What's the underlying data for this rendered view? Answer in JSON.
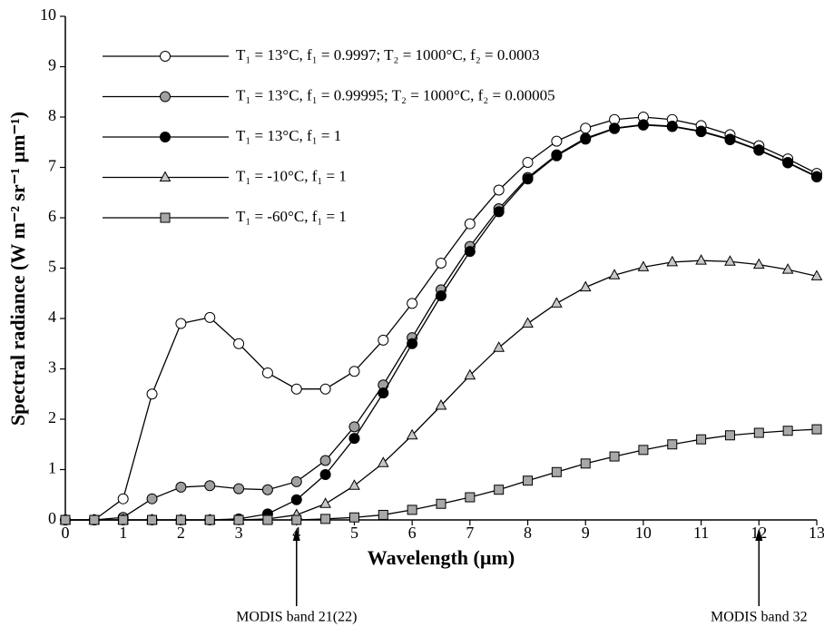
{
  "chart_data": {
    "type": "line",
    "x_label": "Wavelength (µm)",
    "y_label": "Spectral radiance (W m⁻² sr⁻¹ µm⁻¹)",
    "x": [
      0,
      0.5,
      1,
      1.5,
      2,
      2.5,
      3,
      3.5,
      4,
      4.5,
      5,
      5.5,
      6,
      6.5,
      7,
      7.5,
      8,
      8.5,
      9,
      9.5,
      10,
      10.5,
      11,
      11.5,
      12,
      12.5,
      13
    ],
    "series": [
      {
        "name": "T₁ =  13°C, f₁ = 0.9997; T₂ = 1000°C, f₂ = 0.0003",
        "color": "#ffffff",
        "marker": "circle",
        "values": [
          0,
          0,
          0.42,
          2.5,
          3.9,
          4.02,
          3.5,
          2.92,
          2.6,
          2.6,
          2.95,
          3.57,
          4.3,
          5.1,
          5.88,
          6.55,
          7.1,
          7.52,
          7.78,
          7.95,
          8.0,
          7.95,
          7.83,
          7.65,
          7.43,
          7.17,
          6.88
        ]
      },
      {
        "name": "T₁ =  13°C, f₁ = 0.99995; T₂ = 1000°C, f₂ = 0.00005",
        "color": "#a0a0a0",
        "marker": "circle",
        "values": [
          0,
          0,
          0.05,
          0.42,
          0.65,
          0.68,
          0.62,
          0.6,
          0.76,
          1.18,
          1.85,
          2.68,
          3.62,
          4.57,
          5.43,
          6.18,
          6.8,
          7.25,
          7.58,
          7.78,
          7.85,
          7.82,
          7.72,
          7.56,
          7.35,
          7.1,
          6.82
        ]
      },
      {
        "name": "T₁ =  13°C, f₁ = 1",
        "color": "#000000",
        "marker": "circle",
        "values": [
          0,
          0,
          0,
          0,
          0,
          0,
          0.02,
          0.12,
          0.4,
          0.9,
          1.62,
          2.52,
          3.5,
          4.45,
          5.33,
          6.12,
          6.77,
          7.23,
          7.56,
          7.77,
          7.84,
          7.81,
          7.71,
          7.55,
          7.34,
          7.09,
          6.81
        ]
      },
      {
        "name": "T₁ = -10°C, f₁ = 1",
        "color": "#c8c8c8",
        "marker": "triangle",
        "values": [
          0,
          0,
          0,
          0,
          0,
          0,
          0,
          0.02,
          0.1,
          0.32,
          0.68,
          1.13,
          1.68,
          2.27,
          2.87,
          3.42,
          3.9,
          4.3,
          4.62,
          4.86,
          5.02,
          5.12,
          5.15,
          5.13,
          5.07,
          4.97,
          4.84
        ]
      },
      {
        "name": "T₁ = -60°C, f₁ = 1",
        "color": "#a8a8a8",
        "marker": "square",
        "values": [
          0,
          0,
          0,
          0,
          0,
          0,
          0,
          0,
          0,
          0.02,
          0.05,
          0.1,
          0.2,
          0.32,
          0.45,
          0.6,
          0.78,
          0.95,
          1.12,
          1.26,
          1.39,
          1.5,
          1.6,
          1.68,
          1.73,
          1.77,
          1.8
        ]
      }
    ],
    "xlim": [
      0,
      13
    ],
    "ylim": [
      0,
      10
    ],
    "xticks": [
      0,
      1,
      2,
      3,
      4,
      5,
      6,
      7,
      8,
      9,
      10,
      11,
      12,
      13
    ],
    "yticks": [
      0,
      1,
      2,
      3,
      4,
      5,
      6,
      7,
      8,
      9,
      10
    ],
    "annotations": [
      {
        "text": "MODIS band 21(22)",
        "x": 4
      },
      {
        "text": "MODIS band 32",
        "x": 12
      }
    ]
  }
}
